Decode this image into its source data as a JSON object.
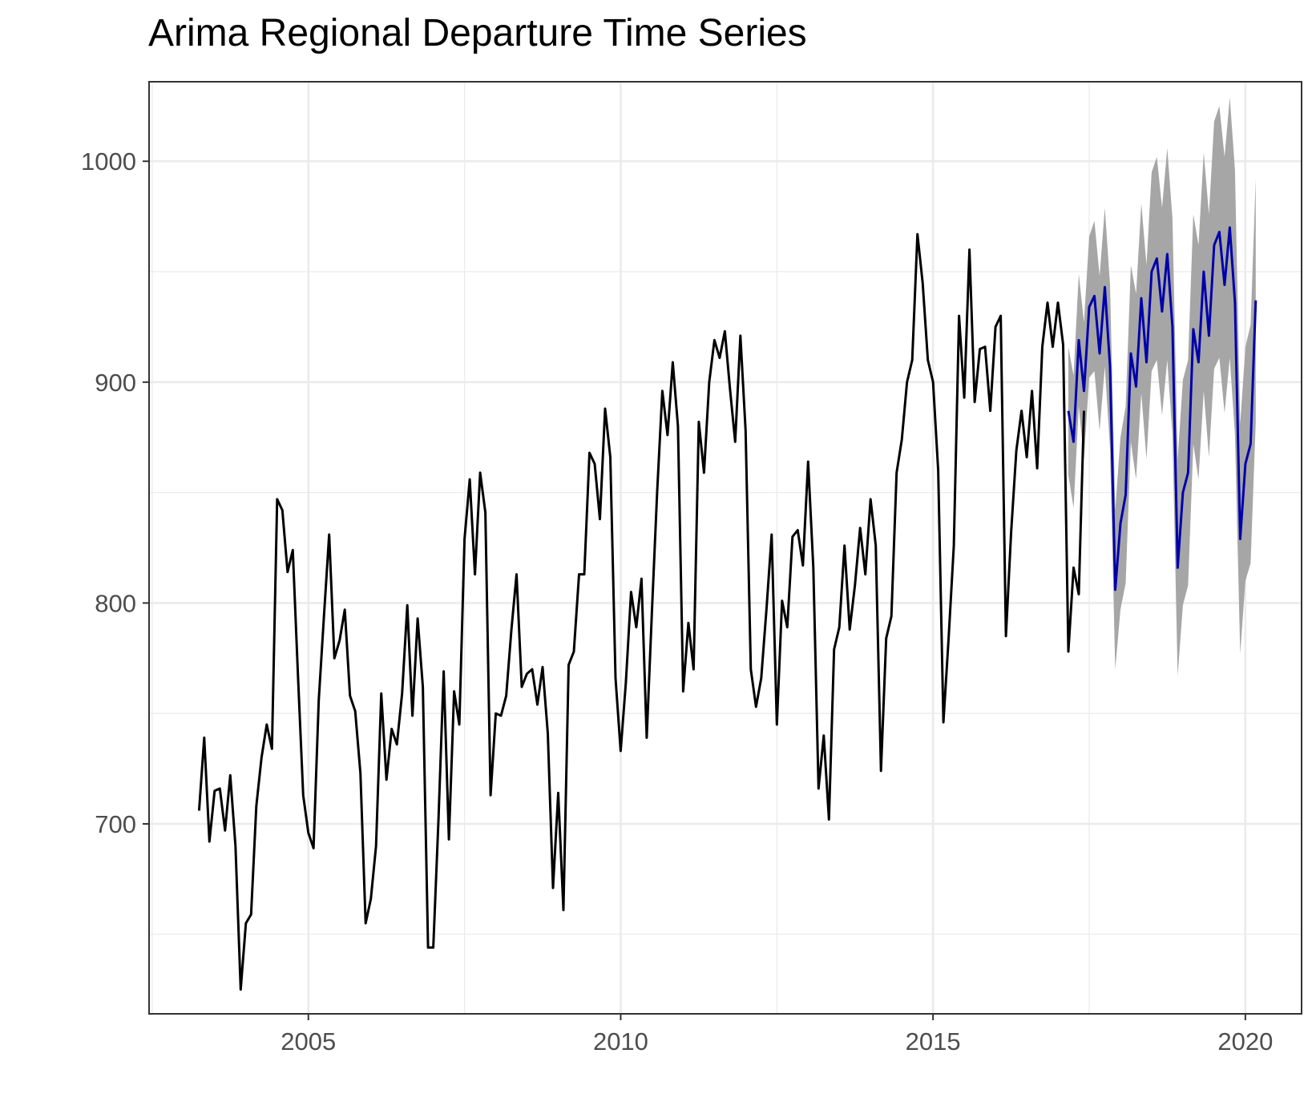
{
  "chart_data": {
    "type": "line",
    "title": "Arima Regional Departure Time Series",
    "xlabel": "",
    "ylabel": "",
    "xlim": [
      2002.45,
      2020.9
    ],
    "ylim": [
      614,
      1036
    ],
    "x_ticks": [
      2005,
      2010,
      2015,
      2020
    ],
    "x_tick_labels": [
      "2005",
      "2010",
      "2015",
      "2020"
    ],
    "y_ticks": [
      700,
      800,
      900,
      1000
    ],
    "y_tick_labels": [
      "700",
      "800",
      "900",
      "1000"
    ],
    "grid": true,
    "legend": "none",
    "colors": {
      "observed": "#000000",
      "forecast": "#0000aa",
      "interval": "#a6a6a6",
      "grid": "#ebebeb",
      "border": "#333333",
      "tick_text": "#4d4d4d"
    },
    "series": [
      {
        "role": "observed",
        "start": 2003.25,
        "step": 0.0833333,
        "values": [
          706,
          739,
          692,
          715,
          716,
          697,
          722,
          690,
          625,
          655,
          659,
          708,
          730,
          745,
          734,
          847,
          842,
          814,
          824,
          767,
          713,
          696,
          689,
          756,
          794,
          831,
          775,
          783,
          797,
          758,
          751,
          723,
          655,
          666,
          690,
          759,
          720,
          743,
          736,
          759,
          799,
          749,
          793,
          762,
          644,
          644,
          702,
          769,
          693,
          760,
          745,
          829,
          856,
          813,
          859,
          841,
          713,
          750,
          749,
          758,
          788,
          813,
          762,
          768,
          770,
          754,
          771,
          741,
          671,
          714,
          661,
          772,
          778,
          813,
          813,
          868,
          863,
          838,
          888,
          866,
          766,
          733,
          764,
          805,
          789,
          811,
          739,
          796,
          850,
          896,
          876,
          909,
          880,
          760,
          791,
          770,
          882,
          859,
          900,
          919,
          911,
          923,
          897,
          873,
          921,
          878,
          770,
          753,
          766,
          797,
          831,
          745,
          801,
          789,
          830,
          833,
          817,
          864,
          816,
          716,
          740,
          702,
          779,
          789,
          826,
          788,
          808,
          834,
          813,
          847,
          826,
          724,
          784,
          794,
          859,
          874,
          900,
          910,
          967,
          945,
          910,
          900,
          860,
          746,
          784,
          826,
          930,
          893,
          960,
          891,
          915,
          916,
          887,
          925,
          930,
          785,
          832,
          869,
          887,
          866,
          896,
          861,
          916,
          936,
          916,
          936,
          917,
          778,
          816,
          804,
          887
        ]
      },
      {
        "role": "forecast",
        "start": 2017.1667,
        "step": 0.0833333,
        "values": [
          887,
          873,
          919,
          896,
          934,
          939,
          913,
          943,
          907,
          806,
          836,
          849,
          913,
          898,
          938,
          909,
          950,
          956,
          932,
          958,
          925,
          816,
          850,
          859,
          924,
          909,
          950,
          921,
          962,
          968,
          944,
          970,
          936,
          829,
          863,
          872,
          937
        ]
      }
    ],
    "interval_band": {
      "start": 2017.1667,
      "step": 0.0833333,
      "lower": [
        858,
        843,
        889,
        865,
        902,
        905,
        878,
        907,
        870,
        770,
        797,
        809,
        873,
        856,
        895,
        865,
        905,
        910,
        885,
        910,
        876,
        767,
        799,
        808,
        872,
        856,
        896,
        866,
        906,
        911,
        886,
        911,
        876,
        777,
        810,
        818,
        882
      ],
      "upper": [
        916,
        903,
        949,
        927,
        966,
        973,
        948,
        979,
        944,
        842,
        875,
        889,
        953,
        940,
        981,
        953,
        995,
        1002,
        979,
        1006,
        974,
        865,
        901,
        910,
        976,
        962,
        1004,
        976,
        1018,
        1025,
        1002,
        1029,
        996,
        881,
        916,
        926,
        992
      ]
    }
  }
}
